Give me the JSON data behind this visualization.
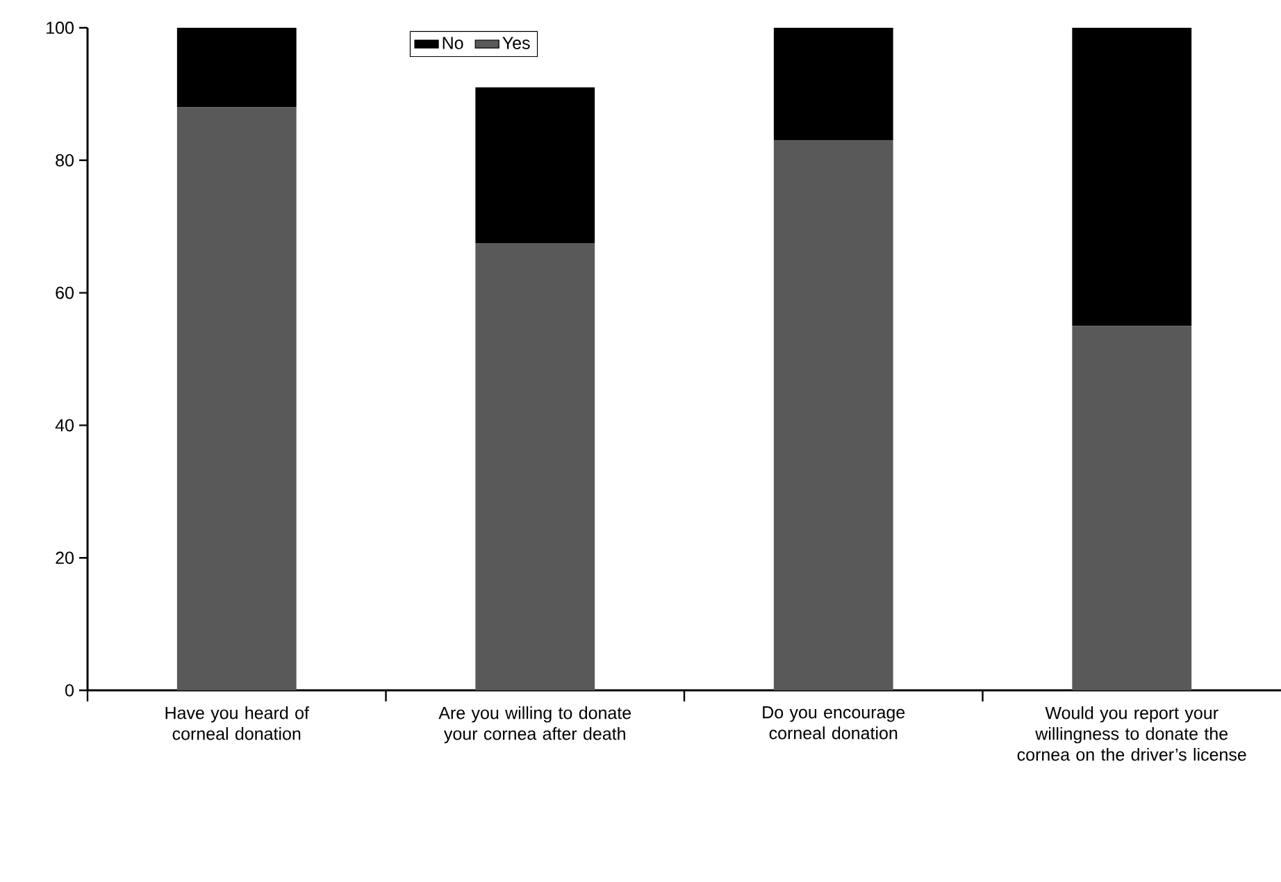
{
  "chart_data": {
    "type": "bar",
    "stacked": true,
    "categories": [
      "Have you heard of corneal donation",
      "Are you willing to donate your cornea after death",
      "Do you encourage corneal donation",
      "Would you report your willingness to donate the cornea on the driver’s license"
    ],
    "series": [
      {
        "name": "Yes",
        "color": "#595959",
        "values": [
          88,
          67.5,
          83,
          55
        ]
      },
      {
        "name": "No",
        "color": "#000000",
        "values": [
          12,
          23.5,
          17,
          45
        ]
      }
    ],
    "ylim": [
      0,
      100
    ],
    "yticks": [
      0,
      20,
      40,
      60,
      80,
      100
    ],
    "grid": false,
    "legend": "top left"
  }
}
